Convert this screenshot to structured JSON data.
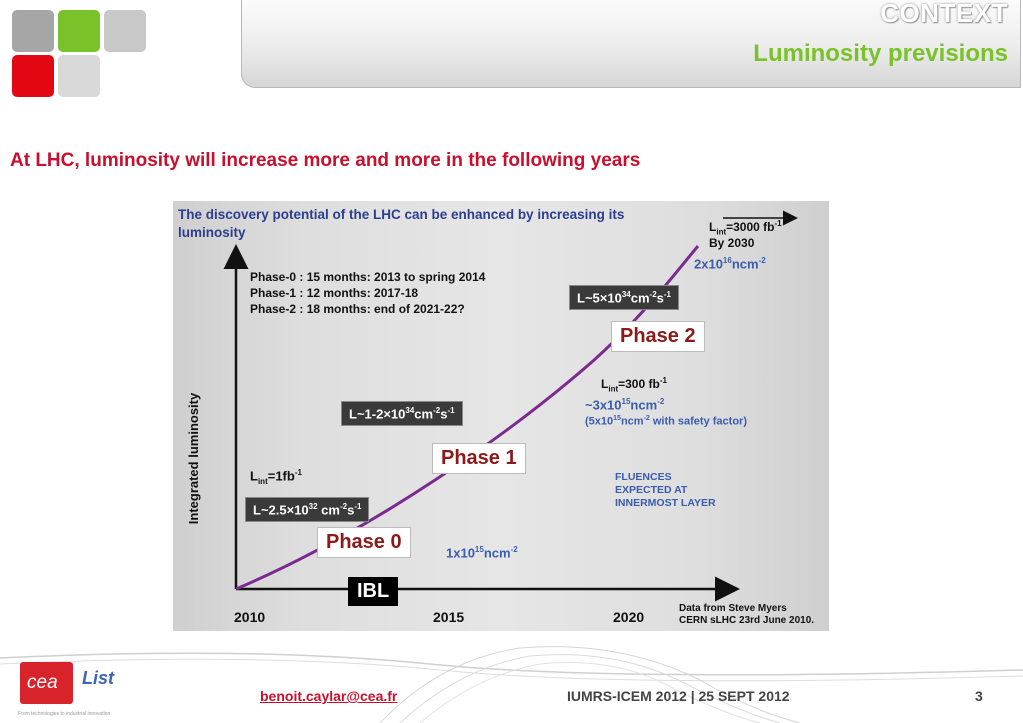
{
  "header": {
    "title": "CONTEXT",
    "subtitle": "Luminosity previsions",
    "logo_colors": [
      "#a6a6a6",
      "#7ac229",
      "#c8c8c8",
      "#e30613",
      "#d9d9d9"
    ]
  },
  "headline": "At LHC, luminosity will increase more and more in the following years",
  "figure": {
    "title_line1": "The discovery potential of the LHC can be enhanced by increasing its",
    "title_line2": "luminosity",
    "ylabel": "Integrated luminosity",
    "phases_text": [
      "Phase-0 : 15 months: 2013 to spring 2014",
      "Phase-1 : 12 months:  2017-18",
      "Phase-2 : 18 months: end of 2021-22?"
    ],
    "years": [
      "2010",
      "2015",
      "2020"
    ],
    "source_line1": "Data from Steve Myers",
    "source_line2": "CERN sLHC 23rd June 2010.",
    "lint_top_pre": "L",
    "lint_top_sub": "int",
    "lint_top_post": "=3000 fb",
    "lint_top_sup": "-1",
    "by2030": "By 2030",
    "fluence_top_pre": "2x10",
    "fluence_top_sup": "16",
    "fluence_top_post": "ncm",
    "fluence_top_sup2": "-2",
    "lum_phase2_pre": "L~5×10",
    "lum_phase2_sup1": "34",
    "lum_phase2_mid": "cm",
    "lum_phase2_sup2": "-2",
    "lum_phase2_mid2": "s",
    "lum_phase2_sup3": "-1",
    "phase2": "Phase 2",
    "lint_mid_pre": "L",
    "lint_mid_sub": "int",
    "lint_mid_post": "=300 fb",
    "lint_mid_sup": "-1",
    "fluence_mid_pre": "~3x10",
    "fluence_mid_sup": "15",
    "fluence_mid_post": "ncm",
    "fluence_mid_sup2": "-2",
    "safety_pre": "(5x10",
    "safety_sup": "15",
    "safety_mid": "ncm",
    "safety_sup2": "-2",
    "safety_post": " with safety factor)",
    "lum_phase1_pre": "L~1-2×10",
    "lum_phase1_sup1": "34",
    "lum_phase1_mid": "cm",
    "lum_phase1_sup2": "-2",
    "lum_phase1_mid2": "s",
    "lum_phase1_sup3": "-1",
    "phase1": "Phase 1",
    "fluences_note": [
      "FLUENCES",
      "EXPECTED AT",
      "INNERMOST LAYER"
    ],
    "lint_low_pre": "L",
    "lint_low_sub": "int",
    "lint_low_post": "=1fb",
    "lint_low_sup": "-1",
    "lum_phase0_pre": "L~2.5×10",
    "lum_phase0_sup1": "32",
    "lum_phase0_mid": " cm",
    "lum_phase0_sup2": "-2",
    "lum_phase0_mid2": "s",
    "lum_phase0_sup3": "-1",
    "phase0": "Phase 0",
    "fluence_low_pre": "1x10",
    "fluence_low_sup": "15",
    "fluence_low_post": "ncm",
    "fluence_low_sup2": "-2",
    "ibl": "IBL",
    "curve_color": "#7b2a8f"
  },
  "footer": {
    "email": "benoit.caylar@cea.fr",
    "conference": "IUMRS-ICEM 2012 | 25 SEPT 2012",
    "page_number": "3",
    "cea_logo_text": "cea",
    "list_logo_text": "List",
    "tagline": "From technologies to industrial innovation"
  }
}
